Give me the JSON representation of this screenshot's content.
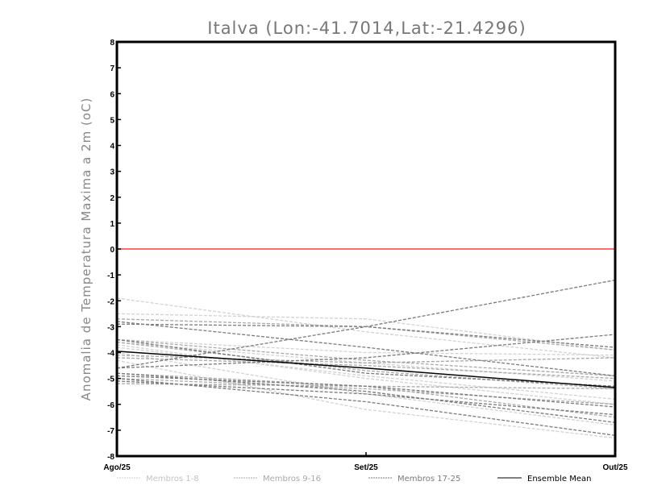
{
  "chart_data": {
    "type": "line",
    "title": "Italva (Lon:-41.7014,Lat:-21.4296)",
    "xlabel": "",
    "ylabel": "Anomalia de Temperatura Maxima a 2m (oC)",
    "categories": [
      "Ago/25",
      "Set/25",
      "Out/25"
    ],
    "ylim": [
      -8,
      8
    ],
    "yticks": [
      "-8",
      "-7",
      "-6",
      "-5",
      "-4",
      "-3",
      "-2",
      "-1",
      "0",
      "1",
      "2",
      "3",
      "4",
      "5",
      "6",
      "7",
      "8"
    ],
    "reference_line": {
      "value": 0,
      "color": "#ff3b3b"
    },
    "groups": [
      {
        "name": "Membros 1-8",
        "color": "#d2d2d2",
        "members": [
          [
            -1.9,
            -3.2,
            -4.2
          ],
          [
            -2.5,
            -2.7,
            -3.9
          ],
          [
            -3.6,
            -4.4,
            -5.1
          ],
          [
            -3.7,
            -5.0,
            -6.0
          ],
          [
            -4.3,
            -6.2,
            -7.3
          ],
          [
            -3.5,
            -4.0,
            -4.1
          ],
          [
            -4.0,
            -5.6,
            -6.8
          ],
          [
            -3.8,
            -4.9,
            -5.8
          ]
        ]
      },
      {
        "name": "Membros 9-16",
        "color": "#a8a8a8",
        "members": [
          [
            -2.7,
            -3.0,
            -3.9
          ],
          [
            -3.5,
            -4.3,
            -4.9
          ],
          [
            -4.2,
            -4.5,
            -5.0
          ],
          [
            -4.8,
            -5.3,
            -5.4
          ],
          [
            -5.0,
            -5.4,
            -6.0
          ],
          [
            -3.6,
            -4.7,
            -5.4
          ],
          [
            -5.2,
            -5.3,
            -6.5
          ],
          [
            -4.1,
            -4.4,
            -4.2
          ]
        ]
      },
      {
        "name": "Membros 17-25",
        "color": "#7a7a7a",
        "members": [
          [
            -4.6,
            -3.0,
            -1.2
          ],
          [
            -2.8,
            -3.8,
            -4.9
          ],
          [
            -2.9,
            -3.0,
            -3.8
          ],
          [
            -4.6,
            -4.2,
            -3.3
          ],
          [
            -4.8,
            -5.5,
            -6.7
          ],
          [
            -5.0,
            -5.9,
            -7.2
          ],
          [
            -4.9,
            -5.3,
            -6.1
          ],
          [
            -3.5,
            -4.8,
            -5.3
          ],
          [
            -5.1,
            -5.6,
            -6.4
          ]
        ]
      }
    ],
    "ensemble_mean": {
      "name": "Ensemble Mean",
      "color": "#000000",
      "values": [
        -3.95,
        -4.6,
        -5.35
      ]
    },
    "legend_position": "bottom"
  }
}
